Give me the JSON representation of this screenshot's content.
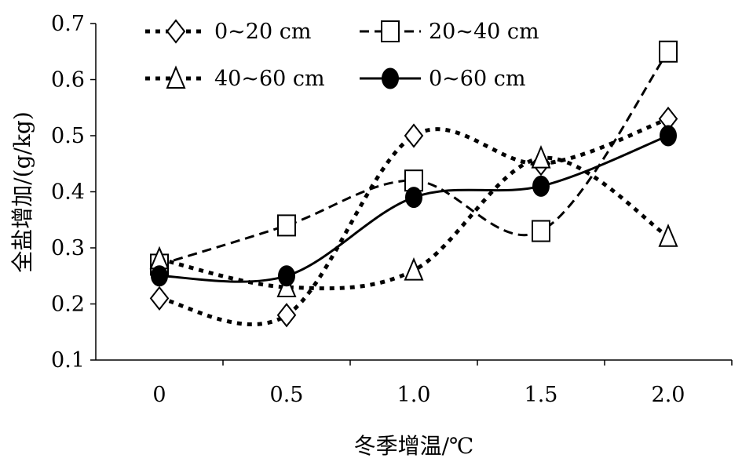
{
  "chart_data": {
    "type": "line",
    "title": "",
    "xlabel": "冬季增温/℃",
    "ylabel": "全盐增加/(g/kg)",
    "x_tick_labels": [
      "0",
      "0.5",
      "1.0",
      "1.5",
      "2.0"
    ],
    "categories": [
      0,
      0.5,
      1.0,
      1.5,
      2.0
    ],
    "ylim": [
      0.1,
      0.7
    ],
    "y_ticks": [
      "0.1",
      "0.2",
      "0.3",
      "0.4",
      "0.5",
      "0.6",
      "0.7"
    ],
    "legend_placement": "top",
    "grid": false,
    "series": [
      {
        "name": "0~20 cm",
        "marker": "diamond",
        "line": "dotted",
        "values": [
          0.21,
          0.18,
          0.5,
          0.45,
          0.53
        ]
      },
      {
        "name": "20~40 cm",
        "marker": "square",
        "line": "dashed",
        "values": [
          0.27,
          0.34,
          0.42,
          0.33,
          0.65
        ]
      },
      {
        "name": "40~60 cm",
        "marker": "triangle",
        "line": "dotted",
        "values": [
          0.28,
          0.23,
          0.26,
          0.46,
          0.32
        ]
      },
      {
        "name": "0~60 cm",
        "marker": "circle",
        "line": "solid",
        "values": [
          0.25,
          0.25,
          0.39,
          0.41,
          0.5
        ]
      }
    ]
  }
}
